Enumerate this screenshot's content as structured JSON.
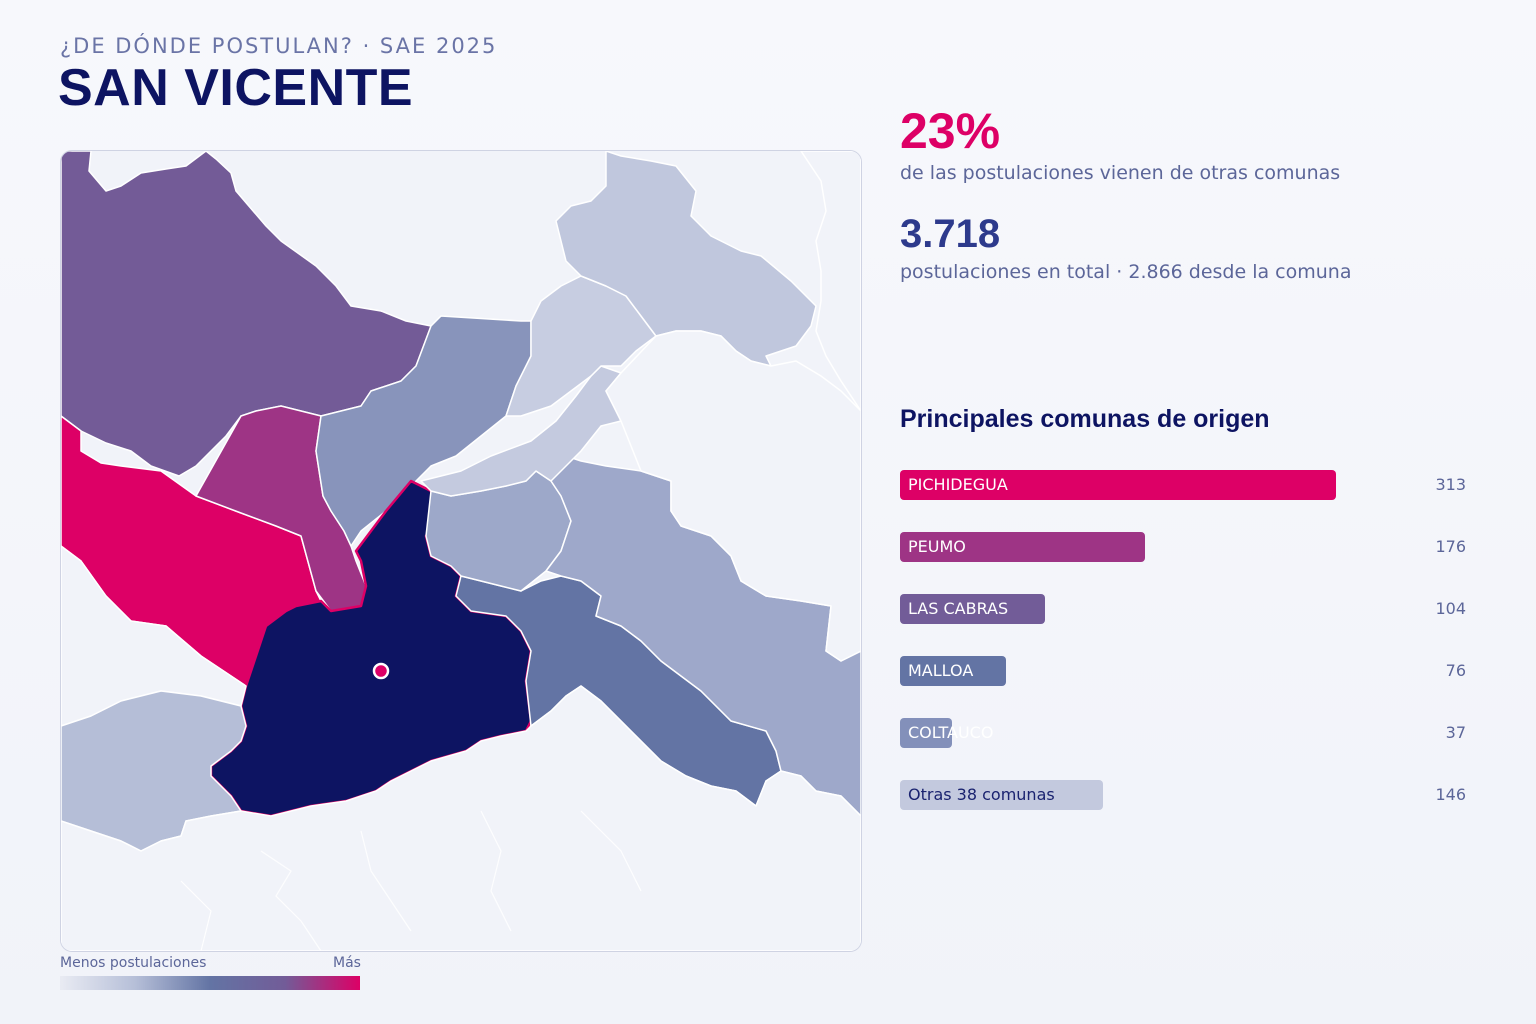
{
  "header": {
    "kicker": "¿DE DÓNDE POSTULAN? · SAE 2025",
    "title": "SAN VICENTE"
  },
  "stats": {
    "percent_value": "23%",
    "percent_desc": "de las postulaciones vienen de otras comunas",
    "total_value": "3.718",
    "total_desc": "postulaciones en total · 2.866 desde la comuna"
  },
  "ranking": {
    "title": "Principales comunas de origen",
    "max_value": 313,
    "items": [
      {
        "label": "PICHIDEGUA",
        "value": 313,
        "color": "#dd0066"
      },
      {
        "label": "PEUMO",
        "value": 176,
        "color": "#9e3485"
      },
      {
        "label": "LAS CABRAS",
        "value": 104,
        "color": "#725c98"
      },
      {
        "label": "MALLOA",
        "value": 76,
        "color": "#6374a4"
      },
      {
        "label": "COLTAUCO",
        "value": 37,
        "color": "#8390ba"
      },
      {
        "label": "Otras 38 comunas",
        "value": 146,
        "color": "#c3c9de",
        "dark_label": true
      }
    ]
  },
  "legend": {
    "low_label": "Menos postulaciones",
    "high_label": "Más",
    "colors": [
      "#e9ebf3",
      "#b6bfd8",
      "#6374a4",
      "#725c98",
      "#dd0066"
    ]
  },
  "map": {
    "palette": {
      "focus": "#0d1462",
      "highlight_stroke": "#dd0066",
      "outside": "#f1f3f9",
      "border": "#ffffff"
    }
  }
}
